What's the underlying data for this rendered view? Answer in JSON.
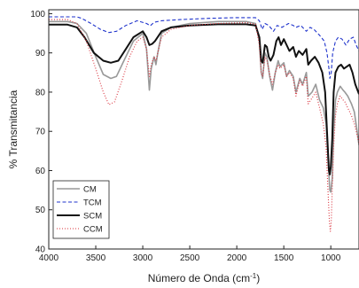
{
  "chart_data": {
    "type": "line",
    "xlabel": "Número de Onda (cm",
    "xlabel_sup": "-1",
    "xlabel_end": ")",
    "ylabel": "% Transmitancia",
    "xlim": [
      4000,
      700
    ],
    "ylim": [
      40,
      101
    ],
    "x_reversed": true,
    "xticks": [
      4000,
      3500,
      3000,
      2500,
      2000,
      1500,
      1000
    ],
    "yticks": [
      40,
      50,
      60,
      70,
      80,
      90,
      100
    ],
    "grid": false,
    "legend_position": "bottom-left",
    "series": [
      {
        "name": "CM",
        "color": "#999999",
        "dash": "solid",
        "points": [
          [
            4000,
            98
          ],
          [
            3800,
            98
          ],
          [
            3700,
            97.5
          ],
          [
            3600,
            95
          ],
          [
            3500,
            89
          ],
          [
            3420,
            84.5
          ],
          [
            3340,
            83.5
          ],
          [
            3280,
            84
          ],
          [
            3200,
            88
          ],
          [
            3100,
            93
          ],
          [
            3000,
            95
          ],
          [
            2960,
            91
          ],
          [
            2930,
            80.5
          ],
          [
            2910,
            86
          ],
          [
            2880,
            89
          ],
          [
            2860,
            87
          ],
          [
            2840,
            90
          ],
          [
            2800,
            95
          ],
          [
            2700,
            96.5
          ],
          [
            2500,
            97.5
          ],
          [
            2200,
            98
          ],
          [
            1900,
            98
          ],
          [
            1800,
            97.5
          ],
          [
            1760,
            93
          ],
          [
            1740,
            85
          ],
          [
            1725,
            83.5
          ],
          [
            1700,
            90
          ],
          [
            1680,
            89
          ],
          [
            1650,
            84
          ],
          [
            1620,
            80.5
          ],
          [
            1590,
            85
          ],
          [
            1560,
            88
          ],
          [
            1540,
            86.5
          ],
          [
            1500,
            87.5
          ],
          [
            1470,
            84
          ],
          [
            1440,
            85.5
          ],
          [
            1400,
            84
          ],
          [
            1370,
            80
          ],
          [
            1330,
            83.5
          ],
          [
            1300,
            82
          ],
          [
            1260,
            85
          ],
          [
            1240,
            79
          ],
          [
            1200,
            80
          ],
          [
            1160,
            82
          ],
          [
            1120,
            78
          ],
          [
            1080,
            76
          ],
          [
            1050,
            72
          ],
          [
            1030,
            63
          ],
          [
            1010,
            55
          ],
          [
            1000,
            54.5
          ],
          [
            985,
            58
          ],
          [
            970,
            70
          ],
          [
            950,
            78
          ],
          [
            930,
            80
          ],
          [
            900,
            81.5
          ],
          [
            870,
            80.5
          ],
          [
            850,
            80
          ],
          [
            820,
            79
          ],
          [
            780,
            77
          ],
          [
            750,
            75
          ],
          [
            720,
            70
          ],
          [
            700,
            66.5
          ]
        ]
      },
      {
        "name": "TCM",
        "color": "#1f33cc",
        "dash": "4,2.5",
        "points": [
          [
            4000,
            99.2
          ],
          [
            3700,
            99.2
          ],
          [
            3650,
            98.8
          ],
          [
            3550,
            97.5
          ],
          [
            3450,
            96
          ],
          [
            3360,
            95.2
          ],
          [
            3280,
            95.5
          ],
          [
            3180,
            97
          ],
          [
            3060,
            98.2
          ],
          [
            2960,
            97.5
          ],
          [
            2920,
            96.9
          ],
          [
            2880,
            97.8
          ],
          [
            2800,
            98.2
          ],
          [
            2600,
            98.5
          ],
          [
            2300,
            98.8
          ],
          [
            2000,
            99
          ],
          [
            1800,
            99
          ],
          [
            1760,
            98.2
          ],
          [
            1730,
            96
          ],
          [
            1700,
            97.5
          ],
          [
            1660,
            97
          ],
          [
            1610,
            95.5
          ],
          [
            1570,
            97
          ],
          [
            1520,
            96.5
          ],
          [
            1450,
            97.5
          ],
          [
            1400,
            97
          ],
          [
            1370,
            96.5
          ],
          [
            1320,
            97
          ],
          [
            1260,
            95.5
          ],
          [
            1220,
            96.5
          ],
          [
            1180,
            96
          ],
          [
            1120,
            94.5
          ],
          [
            1070,
            93
          ],
          [
            1040,
            90
          ],
          [
            1020,
            86
          ],
          [
            1010,
            83.5
          ],
          [
            995,
            85
          ],
          [
            980,
            90
          ],
          [
            950,
            93
          ],
          [
            920,
            94
          ],
          [
            880,
            93.5
          ],
          [
            840,
            92
          ],
          [
            800,
            93.5
          ],
          [
            760,
            94
          ],
          [
            730,
            92
          ],
          [
            700,
            90.5
          ]
        ]
      },
      {
        "name": "SCM",
        "color": "#111111",
        "dash": "solid",
        "points": [
          [
            4000,
            97.2
          ],
          [
            3800,
            97.2
          ],
          [
            3700,
            96.5
          ],
          [
            3620,
            94
          ],
          [
            3520,
            90
          ],
          [
            3420,
            88
          ],
          [
            3340,
            87.5
          ],
          [
            3260,
            88
          ],
          [
            3180,
            91
          ],
          [
            3100,
            94
          ],
          [
            3000,
            95.5
          ],
          [
            2960,
            94
          ],
          [
            2930,
            92
          ],
          [
            2900,
            92.3
          ],
          [
            2870,
            93
          ],
          [
            2800,
            95.5
          ],
          [
            2700,
            96.5
          ],
          [
            2500,
            97
          ],
          [
            2200,
            97.3
          ],
          [
            1900,
            97.3
          ],
          [
            1800,
            97
          ],
          [
            1760,
            94
          ],
          [
            1740,
            88
          ],
          [
            1725,
            87.5
          ],
          [
            1700,
            92
          ],
          [
            1680,
            91.5
          ],
          [
            1660,
            89
          ],
          [
            1640,
            88
          ],
          [
            1610,
            89.5
          ],
          [
            1580,
            93
          ],
          [
            1555,
            94
          ],
          [
            1530,
            92
          ],
          [
            1500,
            93.5
          ],
          [
            1460,
            91.5
          ],
          [
            1440,
            90.5
          ],
          [
            1400,
            91.5
          ],
          [
            1370,
            89
          ],
          [
            1340,
            90.5
          ],
          [
            1300,
            89.5
          ],
          [
            1260,
            91
          ],
          [
            1240,
            87
          ],
          [
            1210,
            88
          ],
          [
            1170,
            89
          ],
          [
            1130,
            87.5
          ],
          [
            1090,
            85
          ],
          [
            1060,
            80
          ],
          [
            1040,
            70
          ],
          [
            1020,
            60
          ],
          [
            1010,
            59
          ],
          [
            1000,
            61
          ],
          [
            985,
            68
          ],
          [
            970,
            80
          ],
          [
            950,
            85
          ],
          [
            920,
            86.5
          ],
          [
            890,
            87
          ],
          [
            860,
            86
          ],
          [
            830,
            86.5
          ],
          [
            800,
            87
          ],
          [
            770,
            85
          ],
          [
            740,
            82
          ],
          [
            700,
            79.5
          ]
        ]
      },
      {
        "name": "CCM",
        "color": "#d9303a",
        "dash": "1,2",
        "points": [
          [
            4000,
            98.5
          ],
          [
            3800,
            98.5
          ],
          [
            3700,
            97.5
          ],
          [
            3600,
            93
          ],
          [
            3500,
            86
          ],
          [
            3420,
            80
          ],
          [
            3360,
            76.8
          ],
          [
            3300,
            77.5
          ],
          [
            3220,
            83
          ],
          [
            3140,
            89
          ],
          [
            3060,
            93
          ],
          [
            3000,
            94
          ],
          [
            2960,
            91
          ],
          [
            2930,
            84
          ],
          [
            2910,
            87
          ],
          [
            2880,
            89
          ],
          [
            2860,
            88
          ],
          [
            2840,
            90
          ],
          [
            2800,
            94
          ],
          [
            2700,
            96
          ],
          [
            2500,
            97
          ],
          [
            2200,
            97.5
          ],
          [
            1900,
            97.7
          ],
          [
            1800,
            97.3
          ],
          [
            1760,
            92
          ],
          [
            1740,
            85
          ],
          [
            1725,
            84
          ],
          [
            1700,
            89
          ],
          [
            1680,
            88
          ],
          [
            1650,
            84.5
          ],
          [
            1620,
            82
          ],
          [
            1590,
            85
          ],
          [
            1560,
            87
          ],
          [
            1540,
            86
          ],
          [
            1500,
            87
          ],
          [
            1470,
            84
          ],
          [
            1440,
            85
          ],
          [
            1400,
            83.5
          ],
          [
            1370,
            79
          ],
          [
            1330,
            83
          ],
          [
            1300,
            81.5
          ],
          [
            1260,
            84
          ],
          [
            1240,
            77
          ],
          [
            1200,
            78.5
          ],
          [
            1160,
            80
          ],
          [
            1120,
            76
          ],
          [
            1080,
            72
          ],
          [
            1050,
            66
          ],
          [
            1030,
            55
          ],
          [
            1015,
            47
          ],
          [
            1005,
            44.5
          ],
          [
            995,
            47
          ],
          [
            985,
            55
          ],
          [
            970,
            66
          ],
          [
            950,
            74
          ],
          [
            930,
            77
          ],
          [
            900,
            79
          ],
          [
            870,
            78
          ],
          [
            850,
            77.5
          ],
          [
            820,
            76
          ],
          [
            780,
            74
          ],
          [
            750,
            72
          ],
          [
            720,
            69
          ],
          [
            700,
            67
          ]
        ]
      }
    ]
  }
}
